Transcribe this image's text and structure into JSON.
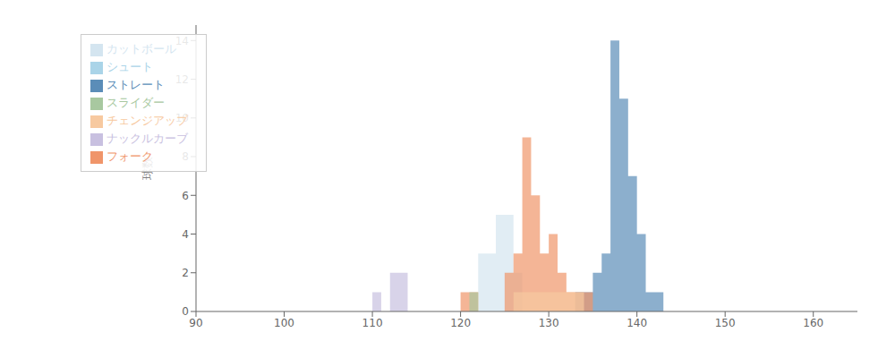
{
  "chart_data": {
    "type": "histogram",
    "ylabel": "球数",
    "xlim": [
      90,
      165
    ],
    "ylim": [
      0,
      14.8
    ],
    "xticks": [
      90,
      100,
      110,
      120,
      130,
      140,
      150,
      160
    ],
    "yticks": [
      0,
      2,
      4,
      6,
      8,
      10,
      12,
      14
    ],
    "grid": false,
    "legend": "upper left",
    "bins": [
      90,
      91,
      92,
      93,
      94,
      95,
      96,
      97,
      98,
      99,
      100,
      101,
      102,
      103,
      104,
      105,
      106,
      107,
      108,
      109,
      110,
      111,
      112,
      113,
      114,
      115,
      116,
      117,
      118,
      119,
      120,
      121,
      122,
      123,
      124,
      125,
      126,
      127,
      128,
      129,
      130,
      131,
      132,
      133,
      134,
      135,
      136,
      137,
      138,
      139,
      140,
      141,
      142,
      143,
      144,
      145,
      146,
      147,
      148,
      149,
      150,
      151,
      152,
      153,
      154,
      155,
      156,
      157,
      158,
      159,
      160,
      161,
      162,
      163,
      164,
      165
    ],
    "series": [
      {
        "name": "ストレート",
        "color": "#5b8db8",
        "values": [
          0,
          0,
          0,
          0,
          0,
          0,
          0,
          0,
          0,
          0,
          0,
          0,
          0,
          0,
          0,
          0,
          0,
          0,
          0,
          0,
          0,
          0,
          0,
          0,
          0,
          0,
          0,
          0,
          0,
          0,
          0,
          0,
          0,
          0,
          0,
          0,
          0,
          0,
          0,
          0,
          0,
          0,
          0,
          1,
          1,
          2,
          3,
          14,
          11,
          7,
          4,
          1,
          1,
          0,
          0,
          0,
          0,
          0,
          0,
          0,
          0,
          0,
          0,
          0,
          0,
          0,
          0,
          0,
          0,
          0,
          0,
          0,
          0,
          0,
          0
        ]
      },
      {
        "name": "シュート",
        "color": "#aad4e8",
        "values": [
          0,
          0,
          0,
          0,
          0,
          0,
          0,
          0,
          0,
          0,
          0,
          0,
          0,
          0,
          0,
          0,
          0,
          0,
          0,
          0,
          0,
          0,
          0,
          0,
          0,
          0,
          0,
          0,
          0,
          0,
          0,
          0,
          0,
          0,
          0,
          0,
          0,
          0,
          0,
          0,
          0,
          0,
          0,
          0,
          0,
          0,
          0,
          0,
          0,
          0,
          0,
          0,
          0,
          0,
          0,
          0,
          0,
          0,
          0,
          0,
          0,
          0,
          0,
          0,
          0,
          0,
          0,
          0,
          0,
          0,
          0,
          0,
          0,
          0,
          0
        ]
      },
      {
        "name": "カットボール",
        "color": "#d4e5f0",
        "values": [
          0,
          0,
          0,
          0,
          0,
          0,
          0,
          0,
          0,
          0,
          0,
          0,
          0,
          0,
          0,
          0,
          0,
          0,
          0,
          0,
          0,
          0,
          0,
          0,
          0,
          0,
          0,
          0,
          0,
          0,
          0,
          0,
          3,
          3,
          5,
          5,
          2,
          0,
          0,
          0,
          0,
          0,
          0,
          0,
          0,
          0,
          0,
          0,
          0,
          0,
          0,
          0,
          0,
          0,
          0,
          0,
          0,
          0,
          0,
          0,
          0,
          0,
          0,
          0,
          0,
          0,
          0,
          0,
          0,
          0,
          0,
          0,
          0,
          0,
          0
        ]
      },
      {
        "name": "フォーク",
        "color": "#f0956a",
        "values": [
          0,
          0,
          0,
          0,
          0,
          0,
          0,
          0,
          0,
          0,
          0,
          0,
          0,
          0,
          0,
          0,
          0,
          0,
          0,
          0,
          0,
          0,
          0,
          0,
          0,
          0,
          0,
          0,
          0,
          0,
          1,
          1,
          0,
          0,
          0,
          2,
          3,
          9,
          6,
          3,
          4,
          2,
          1,
          1,
          1,
          0,
          0,
          0,
          0,
          0,
          0,
          0,
          0,
          0,
          0,
          0,
          0,
          0,
          0,
          0,
          0,
          0,
          0,
          0,
          0,
          0,
          0,
          0,
          0,
          0,
          0,
          0,
          0,
          0,
          0
        ]
      },
      {
        "name": "チェンジアップ",
        "color": "#f7c9a0",
        "values": [
          0,
          0,
          0,
          0,
          0,
          0,
          0,
          0,
          0,
          0,
          0,
          0,
          0,
          0,
          0,
          0,
          0,
          0,
          0,
          0,
          0,
          0,
          0,
          0,
          0,
          0,
          0,
          0,
          0,
          0,
          0,
          0,
          0,
          0,
          0,
          0,
          1,
          1,
          1,
          1,
          1,
          1,
          1,
          1,
          0,
          0,
          0,
          0,
          0,
          0,
          0,
          0,
          0,
          0,
          0,
          0,
          0,
          0,
          0,
          0,
          0,
          0,
          0,
          0,
          0,
          0,
          0,
          0,
          0,
          0,
          0,
          0,
          0,
          0,
          0
        ]
      },
      {
        "name": "スライダー",
        "color": "#a8c8a0",
        "values": [
          0,
          0,
          0,
          0,
          0,
          0,
          0,
          0,
          0,
          0,
          0,
          0,
          0,
          0,
          0,
          0,
          0,
          0,
          0,
          0,
          0,
          0,
          0,
          0,
          0,
          0,
          0,
          0,
          0,
          0,
          0,
          1,
          0,
          0,
          0,
          0,
          0,
          0,
          0,
          0,
          0,
          0,
          0,
          0,
          0,
          0,
          0,
          0,
          0,
          0,
          0,
          0,
          0,
          0,
          0,
          0,
          0,
          0,
          0,
          0,
          0,
          0,
          0,
          0,
          0,
          0,
          0,
          0,
          0,
          0,
          0,
          0,
          0,
          0,
          0
        ]
      },
      {
        "name": "ナックルカーブ",
        "color": "#c8c0e0",
        "values": [
          0,
          0,
          0,
          0,
          0,
          0,
          0,
          0,
          0,
          0,
          0,
          0,
          0,
          0,
          0,
          0,
          0,
          0,
          0,
          0,
          1,
          0,
          2,
          2,
          0,
          0,
          0,
          0,
          0,
          0,
          0,
          0,
          0,
          0,
          0,
          0,
          0,
          0,
          0,
          0,
          0,
          0,
          0,
          0,
          0,
          0,
          0,
          0,
          0,
          0,
          0,
          0,
          0,
          0,
          0,
          0,
          0,
          0,
          0,
          0,
          0,
          0,
          0,
          0,
          0,
          0,
          0,
          0,
          0,
          0,
          0,
          0,
          0,
          0,
          0
        ]
      }
    ]
  }
}
